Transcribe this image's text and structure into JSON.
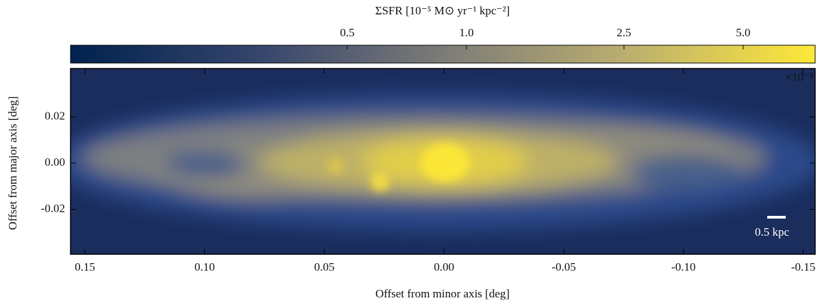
{
  "chart_data": {
    "type": "heatmap",
    "xlabel": "Offset from minor axis [deg]",
    "ylabel": "Offset from major axis [deg]",
    "xlim": [
      0.156,
      -0.155
    ],
    "xticks": [
      0.15,
      {
        "value": 0.1,
        "label": "0.10"
      },
      0.05,
      {
        "value": 0,
        "label": "0.00"
      },
      -0.05,
      {
        "value": -0.1,
        "label": "-0.10"
      },
      -0.15
    ],
    "ylim": [
      -0.0394,
      0.0409
    ],
    "yticks": [
      0.02,
      {
        "value": 0,
        "label": "0.00"
      },
      -0.02
    ],
    "offset_text": "×10⁻⁵",
    "annotation": "0.5 kpc",
    "colorbar": {
      "label": "ΣSFR [10⁻⁵ M⊙ yr⁻¹ kpc⁻²]",
      "location": "top",
      "lim": [
        0.1,
        7.6
      ],
      "log_scale": true,
      "ticks": [
        0.5,
        {
          "value": 1,
          "label": "1.0"
        },
        2.5,
        {
          "value": 5,
          "label": "5.0"
        }
      ],
      "colormap": [
        "#00224e",
        "#35456c",
        "#7c7b78",
        "#bcaf6f",
        "#fee838"
      ]
    }
  }
}
